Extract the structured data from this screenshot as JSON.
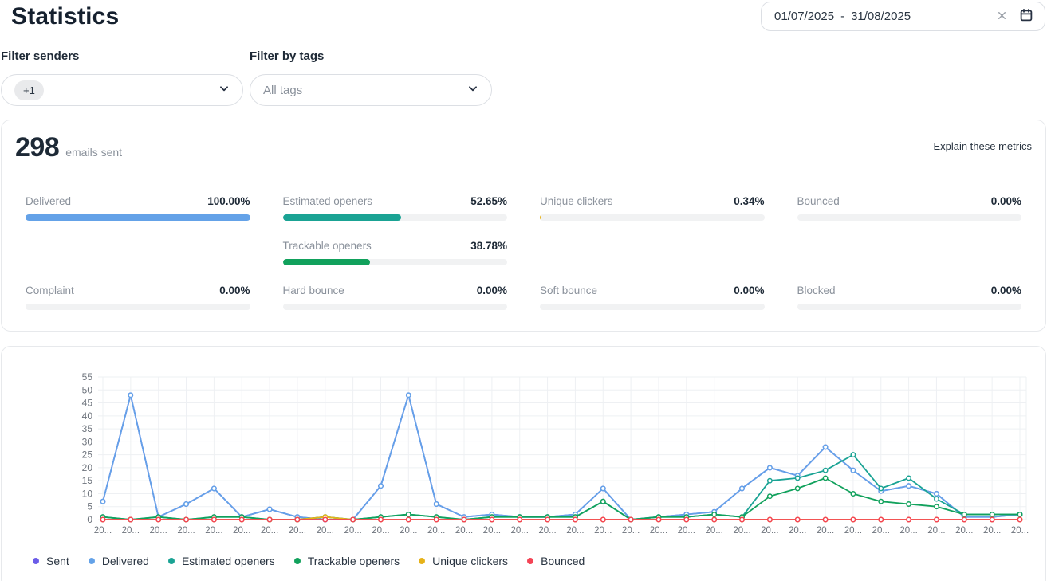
{
  "header": {
    "title": "Statistics",
    "date_range": {
      "start": "01/07/2025",
      "separator": "-",
      "end": "31/08/2025"
    }
  },
  "filters": {
    "senders": {
      "label": "Filter senders",
      "chip": "+1"
    },
    "tags": {
      "label": "Filter by tags",
      "placeholder": "All tags"
    }
  },
  "summary": {
    "count": "298",
    "count_suffix": "emails sent",
    "explain_link": "Explain these metrics",
    "track_color": "#f1f2f3",
    "metrics": [
      {
        "label": "Delivered",
        "value": "100.00%",
        "pct": 100,
        "color": "#64a2e8",
        "row": 1,
        "col": 1
      },
      {
        "label": "Estimated openers",
        "value": "52.65%",
        "pct": 52.65,
        "color": "#1aa394",
        "row": 1,
        "col": 2
      },
      {
        "label": "Unique clickers",
        "value": "0.34%",
        "pct": 0.34,
        "color": "#e6b219",
        "row": 1,
        "col": 3
      },
      {
        "label": "Bounced",
        "value": "0.00%",
        "pct": 0,
        "color": "#f44455",
        "row": 1,
        "col": 4
      },
      {
        "label": "Trackable openers",
        "value": "38.78%",
        "pct": 38.78,
        "color": "#11a15c",
        "row": 2,
        "col": 2
      },
      {
        "label": "Complaint",
        "value": "0.00%",
        "pct": 0,
        "color": "#f44455",
        "row": 3,
        "col": 1
      },
      {
        "label": "Hard bounce",
        "value": "0.00%",
        "pct": 0,
        "color": "#f44455",
        "row": 3,
        "col": 2
      },
      {
        "label": "Soft bounce",
        "value": "0.00%",
        "pct": 0,
        "color": "#f44455",
        "row": 3,
        "col": 3
      },
      {
        "label": "Blocked",
        "value": "0.00%",
        "pct": 0,
        "color": "#f44455",
        "row": 3,
        "col": 4
      }
    ]
  },
  "chart_data": {
    "type": "line",
    "title": "",
    "xlabel": "",
    "ylabel": "",
    "ylim": [
      0,
      55
    ],
    "y_ticks": [
      0,
      5,
      10,
      15,
      20,
      25,
      30,
      35,
      40,
      45,
      50,
      55
    ],
    "grid": true,
    "legend_position": "bottom",
    "grid_color": "#eef0f3",
    "axis_text_color": "#6d737c",
    "x_labels": [
      "20...",
      "20...",
      "20...",
      "20...",
      "20...",
      "20...",
      "20...",
      "20...",
      "20...",
      "20...",
      "20...",
      "20...",
      "20...",
      "20...",
      "20...",
      "20...",
      "20...",
      "20...",
      "20...",
      "20...",
      "20...",
      "20...",
      "20...",
      "20...",
      "20...",
      "20...",
      "20...",
      "20...",
      "20...",
      "20...",
      "20...",
      "20...",
      "20...",
      "20..."
    ],
    "series": [
      {
        "name": "Sent",
        "color": "#6b5ce8",
        "values": [
          7,
          48,
          1,
          6,
          12,
          1,
          4,
          1,
          0,
          0,
          13,
          48,
          6,
          1,
          2,
          1,
          1,
          2,
          12,
          0,
          1,
          2,
          3,
          12,
          20,
          17,
          28,
          19,
          11,
          13,
          10,
          1,
          1,
          2
        ]
      },
      {
        "name": "Delivered",
        "color": "#64a2e8",
        "values": [
          7,
          48,
          1,
          6,
          12,
          1,
          4,
          1,
          0,
          0,
          13,
          48,
          6,
          1,
          2,
          1,
          1,
          2,
          12,
          0,
          1,
          2,
          3,
          12,
          20,
          17,
          28,
          19,
          11,
          13,
          10,
          1,
          1,
          2
        ]
      },
      {
        "name": "Estimated openers",
        "color": "#1aa394",
        "values": [
          1,
          0,
          1,
          0,
          1,
          1,
          0,
          0,
          1,
          0,
          1,
          2,
          1,
          0,
          1,
          1,
          1,
          1,
          7,
          0,
          1,
          1,
          2,
          1,
          15,
          16,
          19,
          25,
          12,
          16,
          8,
          2,
          2,
          2
        ]
      },
      {
        "name": "Trackable openers",
        "color": "#11a15c",
        "values": [
          1,
          0,
          1,
          0,
          1,
          1,
          0,
          0,
          1,
          0,
          1,
          2,
          1,
          0,
          1,
          1,
          1,
          1,
          7,
          0,
          1,
          1,
          2,
          1,
          9,
          12,
          16,
          10,
          7,
          6,
          5,
          2,
          2,
          2
        ]
      },
      {
        "name": "Unique clickers",
        "color": "#e6b219",
        "values": [
          0,
          0,
          0,
          0,
          0,
          0,
          0,
          0,
          1,
          0,
          0,
          0,
          0,
          0,
          0,
          0,
          0,
          0,
          0,
          0,
          0,
          0,
          0,
          0,
          0,
          0,
          0,
          0,
          0,
          0,
          0,
          0,
          0,
          0
        ]
      },
      {
        "name": "Bounced",
        "color": "#f44455",
        "values": [
          0,
          0,
          0,
          0,
          0,
          0,
          0,
          0,
          0,
          0,
          0,
          0,
          0,
          0,
          0,
          0,
          0,
          0,
          0,
          0,
          0,
          0,
          0,
          0,
          0,
          0,
          0,
          0,
          0,
          0,
          0,
          0,
          0,
          0
        ]
      }
    ]
  }
}
